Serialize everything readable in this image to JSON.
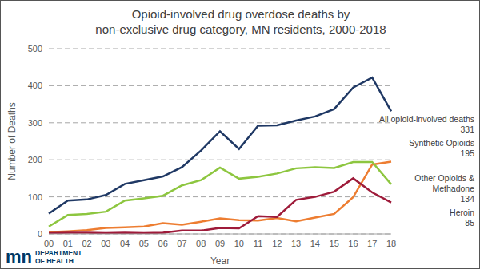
{
  "chart_data": {
    "type": "line",
    "title": [
      "Opioid-involved drug overdose deaths by",
      "non-exclusive drug category, MN residents, 2000-2018"
    ],
    "x_label": "Year",
    "y_label": "Number of Deaths",
    "categories": [
      "00",
      "01",
      "02",
      "03",
      "04",
      "05",
      "06",
      "07",
      "08",
      "09",
      "10",
      "11",
      "12",
      "13",
      "14",
      "15",
      "16",
      "17",
      "18"
    ],
    "series": [
      {
        "name": "All opioid-involved deaths",
        "color": "#1f3864",
        "values": [
          55,
          90,
          93,
          105,
          135,
          145,
          155,
          180,
          225,
          277,
          229,
          292,
          293,
          306,
          317,
          337,
          395,
          422,
          331
        ]
      },
      {
        "name": "Synthetic Opioids",
        "color": "#ed7d31",
        "values": [
          5,
          7,
          10,
          16,
          18,
          20,
          29,
          25,
          33,
          42,
          37,
          36,
          43,
          34,
          44,
          54,
          99,
          187,
          195
        ]
      },
      {
        "name": "Other Opioids & Methadone",
        "color": "#8dc63f",
        "values": [
          20,
          51,
          54,
          60,
          90,
          96,
          103,
          131,
          145,
          179,
          149,
          154,
          163,
          177,
          180,
          178,
          194,
          194,
          134
        ]
      },
      {
        "name": "Heroin",
        "color": "#9e1b3a",
        "values": [
          2,
          3,
          3,
          2,
          3,
          2,
          3,
          9,
          9,
          16,
          15,
          48,
          46,
          92,
          100,
          114,
          150,
          112,
          85
        ]
      }
    ],
    "ylim": [
      0,
      500
    ],
    "yticks": [
      0,
      100,
      200,
      300,
      400,
      500
    ],
    "grid": true,
    "footer": {
      "logo": "mn",
      "text": [
        "DEPARTMENT",
        "OF HEALTH"
      ]
    }
  }
}
